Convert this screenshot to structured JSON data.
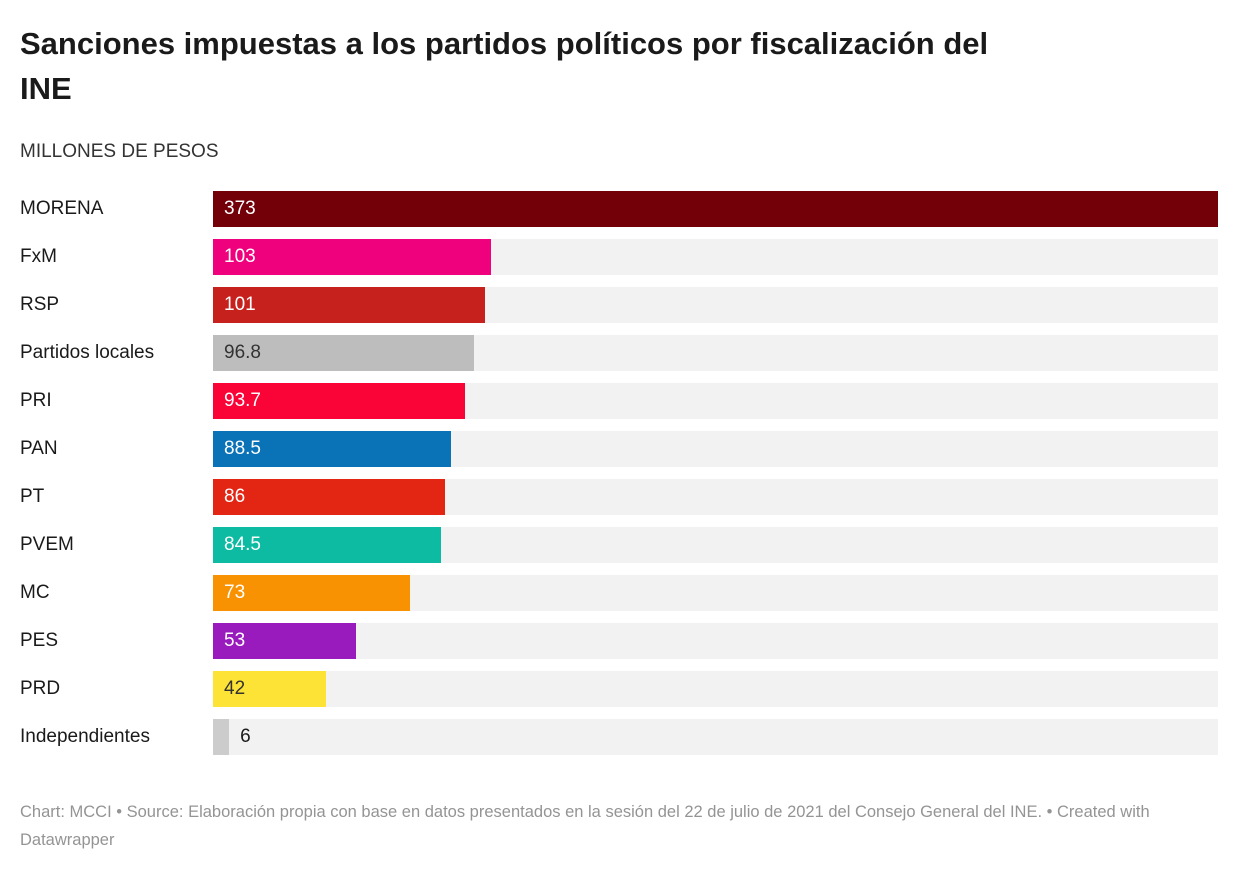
{
  "header": {
    "title": "Sanciones impuestas a los partidos políticos por fiscalización del INE",
    "subtitle": "MILLONES DE PESOS"
  },
  "chart_data": {
    "type": "bar",
    "orientation": "horizontal",
    "title": "Sanciones impuestas a los partidos políticos por fiscalización del INE",
    "subtitle_unit_label": "MILLONES DE PESOS",
    "xlim": [
      0,
      373
    ],
    "grid": false,
    "legend": "none",
    "track_color": "#f2f2f2",
    "categories": [
      "MORENA",
      "FxM",
      "RSP",
      "Partidos locales",
      "PRI",
      "PAN",
      "PT",
      "PVEM",
      "MC",
      "PES",
      "PRD",
      "Independientes"
    ],
    "values": [
      373,
      103,
      101,
      96.8,
      93.7,
      88.5,
      86,
      84.5,
      73,
      53,
      42,
      6
    ],
    "bars": [
      {
        "label": "MORENA",
        "value": 373,
        "display": "373",
        "color": "#730009",
        "text_color": "#ffffff",
        "label_inside": true
      },
      {
        "label": "FxM",
        "value": 103,
        "display": "103",
        "color": "#ef017d",
        "text_color": "#ffffff",
        "label_inside": true
      },
      {
        "label": "RSP",
        "value": 101,
        "display": "101",
        "color": "#c7211d",
        "text_color": "#ffffff",
        "label_inside": true
      },
      {
        "label": "Partidos locales",
        "value": 96.8,
        "display": "96.8",
        "color": "#bdbdbd",
        "text_color": "#333333",
        "label_inside": true
      },
      {
        "label": "PRI",
        "value": 93.7,
        "display": "93.7",
        "color": "#fa0336",
        "text_color": "#ffffff",
        "label_inside": true
      },
      {
        "label": "PAN",
        "value": 88.5,
        "display": "88.5",
        "color": "#0a72b7",
        "text_color": "#ffffff",
        "label_inside": true
      },
      {
        "label": "PT",
        "value": 86,
        "display": "86",
        "color": "#e32513",
        "text_color": "#ffffff",
        "label_inside": true
      },
      {
        "label": "PVEM",
        "value": 84.5,
        "display": "84.5",
        "color": "#0cbba1",
        "text_color": "#ffffff",
        "label_inside": true
      },
      {
        "label": "MC",
        "value": 73,
        "display": "73",
        "color": "#f89203",
        "text_color": "#ffffff",
        "label_inside": true
      },
      {
        "label": "PES",
        "value": 53,
        "display": "53",
        "color": "#991bbd",
        "text_color": "#ffffff",
        "label_inside": true
      },
      {
        "label": "PRD",
        "value": 42,
        "display": "42",
        "color": "#fde335",
        "text_color": "#333333",
        "label_inside": true
      },
      {
        "label": "Independientes",
        "value": 6,
        "display": "6",
        "color": "#cccccc",
        "text_color": "#1a1a1a",
        "label_inside": false
      }
    ]
  },
  "footer": {
    "text": "Chart: MCCI • Source: Elaboración propia con base en datos presentados en la sesión del 22 de julio de 2021 del Consejo General del INE. • Created with Datawrapper"
  }
}
